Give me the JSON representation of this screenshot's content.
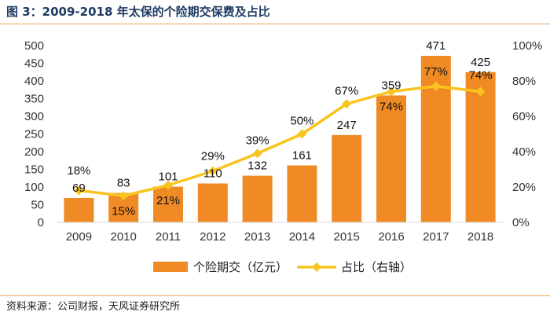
{
  "title": "图 3：2009-2018 年太保的个险期交保费及占比",
  "source": "资料来源：公司财报，天风证券研究所",
  "chart_data": {
    "type": "bar+line",
    "categories": [
      "2009",
      "2010",
      "2011",
      "2012",
      "2013",
      "2014",
      "2015",
      "2016",
      "2017",
      "2018"
    ],
    "series": [
      {
        "name": "个险期交（亿元）",
        "type": "bar",
        "axis": "left",
        "color": "#f08a24",
        "values": [
          69,
          83,
          101,
          110,
          132,
          161,
          247,
          359,
          471,
          425
        ],
        "labels": [
          "69",
          "83",
          "101",
          "110",
          "132",
          "161",
          "247",
          "359",
          "471",
          "425"
        ]
      },
      {
        "name": "占比（右轴）",
        "type": "line",
        "axis": "right",
        "color": "#f9c41f",
        "values": [
          18,
          15,
          21,
          29,
          39,
          50,
          67,
          74,
          77,
          74
        ],
        "labels": [
          "18%",
          "15%",
          "21%",
          "29%",
          "39%",
          "50%",
          "67%",
          "74%",
          "77%",
          "74%"
        ]
      }
    ],
    "y_left": {
      "min": 0,
      "max": 500,
      "ticks": [
        "0",
        "50",
        "100",
        "150",
        "200",
        "250",
        "300",
        "350",
        "400",
        "450",
        "500"
      ]
    },
    "y_right": {
      "min": 0,
      "max": 100,
      "ticks": [
        "0%",
        "20%",
        "40%",
        "60%",
        "80%",
        "100%"
      ]
    },
    "legend": {
      "position": "bottom",
      "items": [
        "个险期交（亿元）",
        "占比（右轴）"
      ]
    }
  }
}
